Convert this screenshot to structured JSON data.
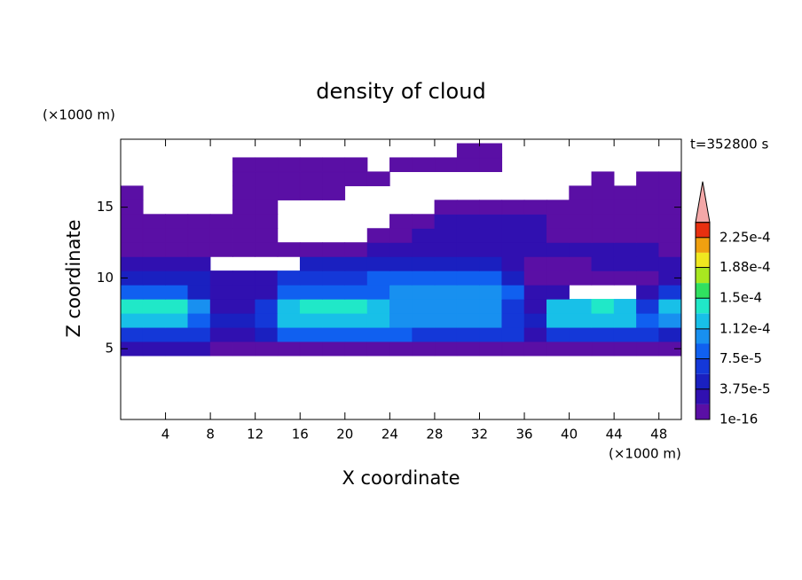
{
  "chart_data": {
    "type": "contour",
    "title": "density of cloud",
    "xlabel": "X coordinate",
    "ylabel": "Z coordinate",
    "xunit": "(×1000 m)",
    "yunit": "(×1000 m)",
    "time_label": "t=352800 s",
    "xlim": [
      0,
      50
    ],
    "ylim": [
      0,
      19.8
    ],
    "xticks": [
      4,
      8,
      12,
      16,
      20,
      24,
      28,
      32,
      36,
      40,
      44,
      48
    ],
    "yticks": [
      5,
      10,
      15
    ],
    "x": [
      1,
      3,
      5,
      7,
      9,
      11,
      13,
      15,
      17,
      19,
      21,
      23,
      25,
      27,
      29,
      31,
      33,
      35,
      37,
      39,
      41,
      43,
      45,
      47,
      49
    ],
    "y": [
      5,
      6,
      7,
      8,
      9,
      10,
      11,
      12,
      13,
      14,
      15,
      16,
      17,
      18,
      19
    ],
    "z": [
      [
        2e-05,
        2e-05,
        2e-05,
        2e-05,
        1e-16,
        1e-16,
        1e-16,
        1e-16,
        1e-16,
        1e-16,
        1e-16,
        1e-16,
        1e-16,
        1e-16,
        1e-16,
        1e-16,
        1e-16,
        1e-16,
        1e-16,
        1e-16,
        1e-16,
        1e-16,
        1e-16,
        1e-16,
        1e-16
      ],
      [
        6e-05,
        6e-05,
        6e-05,
        6e-05,
        2e-05,
        2e-05,
        4e-05,
        8e-05,
        8e-05,
        8e-05,
        8e-05,
        8e-05,
        8e-05,
        6e-05,
        6e-05,
        6e-05,
        6e-05,
        6e-05,
        2e-05,
        6e-05,
        6e-05,
        6e-05,
        6e-05,
        6e-05,
        4e-05
      ],
      [
        0.00012,
        0.00012,
        0.00012,
        8e-05,
        4e-05,
        4e-05,
        6e-05,
        0.00012,
        0.00012,
        0.00012,
        0.00012,
        0.00012,
        0.0001,
        0.0001,
        0.0001,
        0.0001,
        0.0001,
        6e-05,
        4e-05,
        0.00012,
        0.00012,
        0.00012,
        0.00012,
        8e-05,
        0.0001
      ],
      [
        0.00014,
        0.00014,
        0.00014,
        0.0001,
        2e-05,
        2e-05,
        6e-05,
        0.00012,
        0.00014,
        0.00014,
        0.00014,
        0.00012,
        0.0001,
        0.0001,
        0.0001,
        0.0001,
        0.0001,
        6e-05,
        2e-05,
        0.00012,
        0.00012,
        0.00014,
        0.00012,
        6e-05,
        0.00012
      ],
      [
        8e-05,
        8e-05,
        8e-05,
        4e-05,
        2e-05,
        2e-05,
        2e-05,
        8e-05,
        8e-05,
        8e-05,
        8e-05,
        8e-05,
        0.0001,
        0.0001,
        0.0001,
        0.0001,
        0.0001,
        8e-05,
        2e-05,
        2e-05,
        null,
        null,
        null,
        2e-05,
        6e-05
      ],
      [
        4e-05,
        4e-05,
        4e-05,
        4e-05,
        2e-05,
        2e-05,
        2e-05,
        6e-05,
        6e-05,
        6e-05,
        6e-05,
        8e-05,
        8e-05,
        8e-05,
        8e-05,
        8e-05,
        8e-05,
        4e-05,
        1e-16,
        1e-16,
        1e-16,
        1e-16,
        1e-16,
        1e-16,
        2e-05
      ],
      [
        2e-05,
        2e-05,
        2e-05,
        2e-05,
        null,
        null,
        null,
        null,
        4e-05,
        4e-05,
        4e-05,
        4e-05,
        4e-05,
        4e-05,
        4e-05,
        4e-05,
        4e-05,
        2e-05,
        1e-16,
        1e-16,
        1e-16,
        2e-05,
        2e-05,
        2e-05,
        2e-05
      ],
      [
        1e-16,
        1e-16,
        1e-16,
        1e-16,
        1e-16,
        1e-16,
        1e-16,
        1e-16,
        1e-16,
        1e-16,
        1e-16,
        2e-05,
        2e-05,
        2e-05,
        2e-05,
        2e-05,
        2e-05,
        2e-05,
        2e-05,
        2e-05,
        2e-05,
        2e-05,
        2e-05,
        2e-05,
        1e-16
      ],
      [
        1e-16,
        1e-16,
        1e-16,
        1e-16,
        1e-16,
        1e-16,
        1e-16,
        null,
        null,
        null,
        null,
        1e-16,
        1e-16,
        2e-05,
        2e-05,
        2e-05,
        2e-05,
        2e-05,
        2e-05,
        1e-16,
        1e-16,
        1e-16,
        1e-16,
        1e-16,
        1e-16
      ],
      [
        1e-16,
        1e-16,
        1e-16,
        1e-16,
        1e-16,
        1e-16,
        1e-16,
        null,
        null,
        null,
        null,
        null,
        1e-16,
        1e-16,
        2e-05,
        2e-05,
        2e-05,
        2e-05,
        2e-05,
        1e-16,
        1e-16,
        1e-16,
        1e-16,
        1e-16,
        1e-16
      ],
      [
        1e-16,
        null,
        null,
        null,
        null,
        1e-16,
        1e-16,
        null,
        null,
        null,
        null,
        null,
        null,
        null,
        1e-16,
        1e-16,
        1e-16,
        1e-16,
        1e-16,
        1e-16,
        1e-16,
        1e-16,
        1e-16,
        1e-16,
        1e-16
      ],
      [
        1e-16,
        null,
        null,
        null,
        null,
        1e-16,
        1e-16,
        1e-16,
        1e-16,
        1e-16,
        null,
        null,
        null,
        null,
        null,
        null,
        null,
        null,
        null,
        null,
        1e-16,
        1e-16,
        1e-16,
        1e-16,
        1e-16
      ],
      [
        null,
        null,
        null,
        null,
        null,
        1e-16,
        1e-16,
        1e-16,
        1e-16,
        1e-16,
        1e-16,
        1e-16,
        null,
        null,
        null,
        null,
        null,
        null,
        null,
        null,
        null,
        1e-16,
        null,
        1e-16,
        1e-16
      ],
      [
        null,
        null,
        null,
        null,
        null,
        1e-16,
        1e-16,
        1e-16,
        1e-16,
        1e-16,
        1e-16,
        null,
        1e-16,
        1e-16,
        1e-16,
        1e-16,
        1e-16,
        null,
        null,
        null,
        null,
        null,
        null,
        null,
        null
      ],
      [
        null,
        null,
        null,
        null,
        null,
        null,
        null,
        null,
        null,
        null,
        null,
        null,
        null,
        null,
        null,
        1e-16,
        1e-16,
        null,
        null,
        null,
        null,
        null,
        null,
        null,
        null
      ]
    ],
    "colorbar": {
      "clim": [
        1e-16,
        0.00024375
      ],
      "colors": [
        "#5a0fa5",
        "#3010b0",
        "#1a20c0",
        "#1438d8",
        "#1060f0",
        "#1890f0",
        "#18c0e8",
        "#20e8c8",
        "#30e060",
        "#a8e820",
        "#f0e820",
        "#f0a010",
        "#e83010"
      ],
      "extend_color": "#f4a8a8",
      "ticks": [
        {
          "value": 1e-16,
          "label": "1e-16"
        },
        {
          "value": 3.75e-05,
          "label": "3.75e-5"
        },
        {
          "value": 7.5e-05,
          "label": "7.5e-5"
        },
        {
          "value": 0.000112,
          "label": "1.12e-4"
        },
        {
          "value": 0.00015,
          "label": "1.5e-4"
        },
        {
          "value": 0.000188,
          "label": "1.88e-4"
        },
        {
          "value": 0.000225,
          "label": "2.25e-4"
        }
      ]
    }
  }
}
